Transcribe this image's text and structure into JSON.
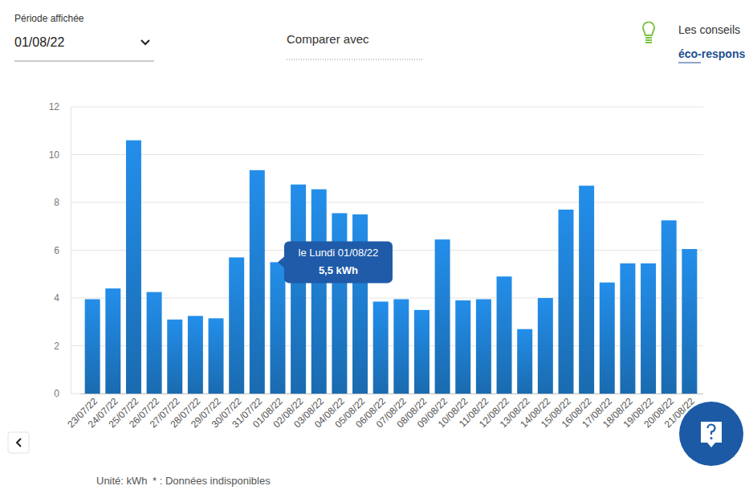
{
  "controls": {
    "period_label": "Période affichée",
    "period_value": "01/08/22",
    "compare_label": "Comparer avec",
    "tips_title": "Les conseils",
    "tips_link": "éco-responsables"
  },
  "chart_data": {
    "type": "bar",
    "color": "#1f80d2",
    "grid": true,
    "categories": [
      "23/07/22",
      "24/07/22",
      "25/07/22",
      "26/07/22",
      "27/07/22",
      "28/07/22",
      "29/07/22",
      "30/07/22",
      "31/07/22",
      "01/08/22",
      "02/08/22",
      "03/08/22",
      "04/08/22",
      "05/08/22",
      "06/08/22",
      "07/08/22",
      "08/08/22",
      "09/08/22",
      "10/08/22",
      "11/08/22",
      "12/08/22",
      "13/08/22",
      "14/08/22",
      "15/08/22",
      "16/08/22",
      "17/08/22",
      "18/08/22",
      "19/08/22",
      "20/08/22",
      "21/08/22"
    ],
    "values": [
      3.95,
      4.4,
      10.6,
      4.25,
      3.1,
      3.25,
      3.15,
      5.7,
      9.35,
      5.5,
      8.75,
      8.55,
      7.55,
      7.5,
      3.85,
      3.95,
      3.5,
      6.45,
      3.9,
      3.95,
      4.9,
      2.7,
      4.0,
      7.7,
      8.7,
      4.65,
      5.45,
      5.45,
      7.25,
      6.05
    ],
    "ylim": [
      0,
      12
    ],
    "yticks": [
      0,
      2,
      4,
      6,
      8,
      10,
      12
    ],
    "annotations": [
      {
        "x": "01/08/22",
        "value": 5.5,
        "title": "le Lundi 01/08/22",
        "label": "5,5 kWh"
      }
    ]
  },
  "footer": {
    "unit": "Unité: kWh",
    "note": "* : Données indisponibles"
  }
}
